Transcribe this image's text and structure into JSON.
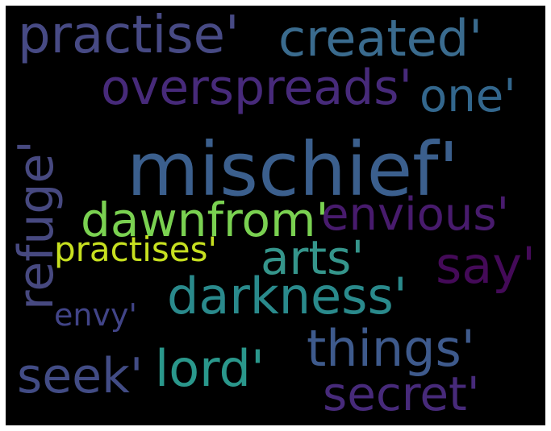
{
  "words": [
    {
      "text": "mischief'",
      "color": "#3b5f8d"
    },
    {
      "text": "practise'",
      "color": "#474a84"
    },
    {
      "text": "created'",
      "color": "#3a6b8e"
    },
    {
      "text": "overspreads'",
      "color": "#472a7a"
    },
    {
      "text": "one'",
      "color": "#33678d"
    },
    {
      "text": "refuge'",
      "color": "#474980"
    },
    {
      "text": "dawnfrom'",
      "color": "#7ad151"
    },
    {
      "text": "envious'",
      "color": "#481b6d"
    },
    {
      "text": "practises'",
      "color": "#c7e020"
    },
    {
      "text": "arts'",
      "color": "#35958b"
    },
    {
      "text": "say'",
      "color": "#440a58"
    },
    {
      "text": "darkness'",
      "color": "#2a8a8c"
    },
    {
      "text": "envy'",
      "color": "#414487"
    },
    {
      "text": "things'",
      "color": "#3e5a8c"
    },
    {
      "text": "seek'",
      "color": "#424c85"
    },
    {
      "text": "lord'",
      "color": "#2a978b"
    },
    {
      "text": "secret'",
      "color": "#472a7a"
    }
  ]
}
